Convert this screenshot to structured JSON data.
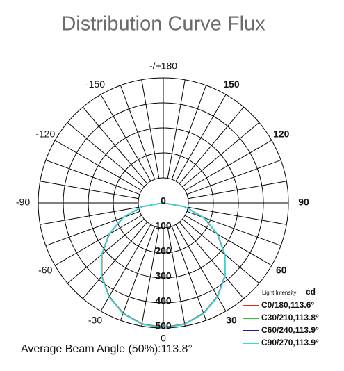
{
  "chart_data": {
    "type": "polar",
    "title": "Distribution Curve Flux",
    "subtitle": "Average Beam Angle (50%):113.8°",
    "legend_title": "Light Intensity:",
    "unit": "cd",
    "theta": [
      -90,
      -80,
      -70,
      -60,
      -50,
      -40,
      -30,
      -20,
      -10,
      0,
      10,
      20,
      30,
      40,
      50,
      60,
      70,
      80,
      90
    ],
    "series": [
      {
        "name": "C0/180,113.6°",
        "color": "#e8232a",
        "values": [
          0,
          86,
          170,
          249,
          320,
          382,
          432,
          469,
          491,
          498,
          491,
          469,
          432,
          382,
          320,
          249,
          170,
          86,
          0
        ]
      },
      {
        "name": "C30/210,113.8°",
        "color": "#2fc42f",
        "values": [
          0,
          87,
          171,
          250,
          321,
          383,
          433,
          470,
          492,
          499,
          492,
          470,
          433,
          383,
          321,
          250,
          171,
          87,
          0
        ]
      },
      {
        "name": "C60/240,113.9°",
        "color": "#1a1aa8",
        "values": [
          0,
          88,
          172,
          251,
          322,
          384,
          434,
          471,
          493,
          500,
          493,
          471,
          434,
          384,
          322,
          251,
          172,
          88,
          0
        ]
      },
      {
        "name": "C90/270,113.9°",
        "color": "#33dde0",
        "values": [
          0,
          88,
          172,
          251,
          322,
          384,
          434,
          471,
          493,
          500,
          493,
          471,
          434,
          384,
          322,
          251,
          172,
          88,
          0
        ]
      }
    ],
    "rlim": [
      0,
      500
    ],
    "rticks": [
      0,
      100,
      200,
      300,
      400,
      500
    ],
    "thetaticks": [
      {
        "value": 180,
        "label": "-/+180"
      },
      150,
      120,
      90,
      60,
      30,
      0,
      -30,
      -60,
      -90,
      -120,
      -150
    ]
  }
}
